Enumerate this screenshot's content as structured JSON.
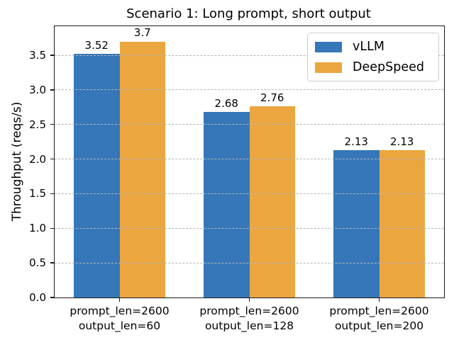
{
  "chart_data": {
    "type": "bar",
    "title": "Scenario 1: Long prompt, short output",
    "xlabel": "",
    "ylabel": "Throughput (reqs/s)",
    "categories": [
      [
        "prompt_len=2600",
        "output_len=60"
      ],
      [
        "prompt_len=2600",
        "output_len=128"
      ],
      [
        "prompt_len=2600",
        "output_len=200"
      ]
    ],
    "series": [
      {
        "name": "vLLM",
        "color": "#3577b9",
        "values": [
          3.52,
          2.68,
          2.13
        ],
        "value_labels": [
          "3.52",
          "2.68",
          "2.13"
        ]
      },
      {
        "name": "DeepSpeed",
        "color": "#eba63f",
        "values": [
          3.7,
          2.76,
          2.13
        ],
        "value_labels": [
          "3.7",
          "2.76",
          "2.13"
        ]
      }
    ],
    "ylim": [
      0,
      3.92
    ],
    "yticks": [
      0.0,
      0.5,
      1.0,
      1.5,
      2.0,
      2.5,
      3.0,
      3.5
    ],
    "ytick_labels": [
      "0.0",
      "0.5",
      "1.0",
      "1.5",
      "2.0",
      "2.5",
      "3.0",
      "3.5"
    ],
    "grid": "horizontal-dashed",
    "grid_color": "#b5b5b5",
    "legend_position": "upper right",
    "background_color": "#ffffff",
    "text_color": "#000000"
  }
}
